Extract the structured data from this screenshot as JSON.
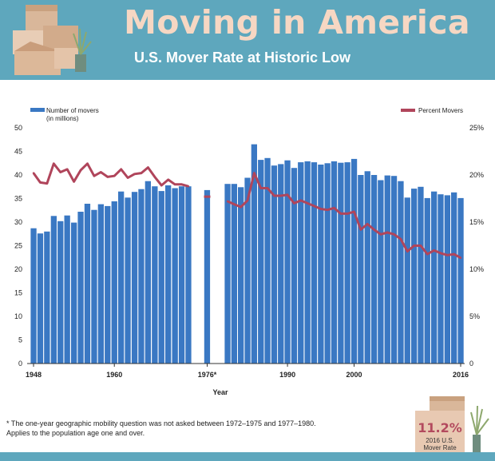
{
  "header": {
    "title": "Moving in America",
    "subtitle": "U.S. Mover Rate at Historic Low"
  },
  "colors": {
    "bar": "#3a78c3",
    "line": "#b0455b",
    "header_bg": "#5ea7bd",
    "title": "#f6d7c3"
  },
  "icons": {
    "moving_boxes": "moving-boxes-icon",
    "plant": "plant-icon"
  },
  "chart_data": {
    "type": "bar+line",
    "xlabel": "Year",
    "legend": {
      "bars": "Number of movers",
      "bars_sub": "(in millions)",
      "line": "Percent Movers"
    },
    "y_left": {
      "min": 0,
      "max": 50,
      "ticks": [
        "0",
        "5",
        "10",
        "15",
        "20",
        "25",
        "30",
        "35",
        "40",
        "45",
        "50"
      ]
    },
    "y_right": {
      "min": 0,
      "max": 25,
      "ticks": [
        "0",
        "5%",
        "10%",
        "15%",
        "20%",
        "25%"
      ]
    },
    "x_labels": [
      {
        "year": 1948,
        "label": "1948"
      },
      {
        "year": 1960,
        "label": "1960"
      },
      {
        "year": 1976,
        "label": "1976*"
      },
      {
        "year": 1990,
        "label": "1990"
      },
      {
        "year": 2000,
        "label": "2000"
      },
      {
        "year": 2016,
        "label": "2016"
      }
    ],
    "years": [
      1948,
      1949,
      1950,
      1951,
      1952,
      1953,
      1954,
      1955,
      1956,
      1957,
      1958,
      1959,
      1960,
      1961,
      1962,
      1963,
      1964,
      1965,
      1966,
      1967,
      1968,
      1969,
      1970,
      1971,
      1976,
      1981,
      1982,
      1983,
      1984,
      1985,
      1986,
      1987,
      1988,
      1989,
      1990,
      1991,
      1992,
      1993,
      1994,
      1995,
      1996,
      1997,
      1998,
      1999,
      2000,
      2001,
      2002,
      2003,
      2004,
      2005,
      2006,
      2007,
      2008,
      2009,
      2010,
      2011,
      2012,
      2013,
      2014,
      2015,
      2016
    ],
    "movers_millions": [
      28.7,
      27.6,
      28.0,
      31.3,
      30.2,
      31.4,
      29.9,
      32.2,
      33.9,
      32.6,
      33.8,
      33.4,
      34.4,
      36.5,
      35.2,
      36.4,
      37.0,
      38.7,
      37.6,
      36.6,
      37.8,
      37.2,
      37.6,
      37.6,
      36.8,
      38.1,
      38.1,
      37.4,
      39.4,
      46.5,
      43.2,
      43.6,
      42.0,
      42.3,
      43.1,
      41.5,
      42.7,
      42.9,
      42.7,
      42.2,
      42.5,
      42.9,
      42.6,
      42.7,
      43.4,
      40.0,
      40.8,
      40.0,
      38.9,
      39.9,
      39.8,
      38.7,
      35.2,
      37.1,
      37.5,
      35.1,
      36.5,
      35.9,
      35.7,
      36.3,
      35.1
    ],
    "percent_movers": [
      20.2,
      19.2,
      19.1,
      21.2,
      20.3,
      20.6,
      19.3,
      20.5,
      21.2,
      19.9,
      20.3,
      19.8,
      19.9,
      20.6,
      19.7,
      20.1,
      20.2,
      20.8,
      19.8,
      18.9,
      19.5,
      19.0,
      19.0,
      18.8,
      17.7,
      17.2,
      16.9,
      16.6,
      17.3,
      20.2,
      18.6,
      18.6,
      17.8,
      17.8,
      17.9,
      17.0,
      17.3,
      17.0,
      16.7,
      16.4,
      16.3,
      16.5,
      15.9,
      15.9,
      16.1,
      14.2,
      14.8,
      14.2,
      13.7,
      13.9,
      13.7,
      13.2,
      11.9,
      12.5,
      12.5,
      11.6,
      12.0,
      11.7,
      11.5,
      11.6,
      11.2
    ]
  },
  "footnote": {
    "line1": "* The one-year geographic mobility question was not asked between 1972–1975 and 1977–1980.",
    "line2": "Applies to the population age one and over."
  },
  "badge": {
    "value": "11.2%",
    "line1": "2016 U.S.",
    "line2": "Mover Rate"
  }
}
